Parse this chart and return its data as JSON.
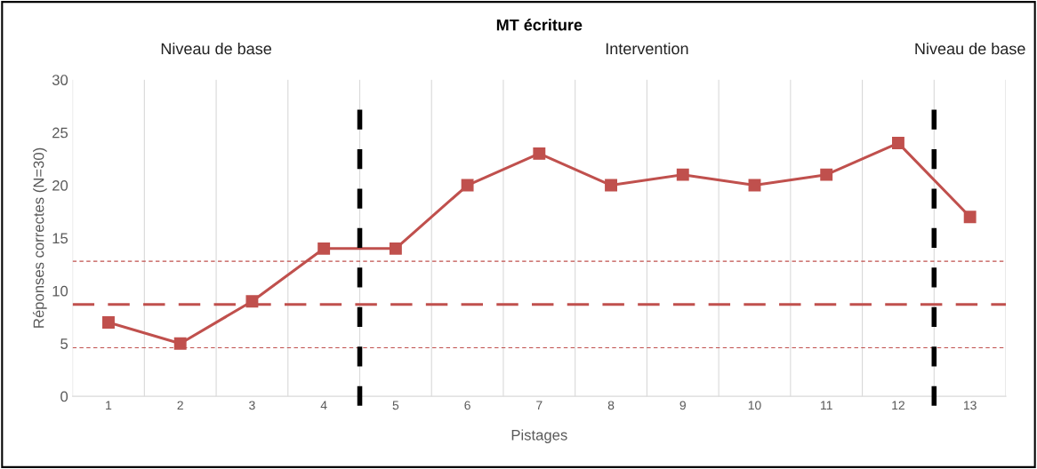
{
  "chart_data": {
    "type": "line",
    "title": "MT écriture",
    "xlabel": "Pistages",
    "ylabel": "Réponses correctes (N=30)",
    "x": [
      1,
      2,
      3,
      4,
      5,
      6,
      7,
      8,
      9,
      10,
      11,
      12,
      13
    ],
    "series": [
      {
        "color": "#c0504d",
        "values": [
          7,
          5,
          9,
          14,
          14,
          20,
          23,
          20,
          21,
          20,
          21,
          24,
          17
        ]
      }
    ],
    "xlim": [
      0.5,
      13.5
    ],
    "xticks": [
      1,
      2,
      3,
      4,
      5,
      6,
      7,
      8,
      9,
      10,
      11,
      12,
      13
    ],
    "ylim": [
      0,
      30
    ],
    "yticks": [
      0,
      5,
      10,
      15,
      20,
      25,
      30
    ],
    "marker": "square",
    "line_style": "solid",
    "grid": "x",
    "legend": false,
    "ref_lines": [
      {
        "axis": "y",
        "value": 8.7,
        "color": "#c0504d",
        "line_style": "dashed"
      },
      {
        "axis": "y",
        "value": 12.8,
        "color": "#c0504d",
        "line_style": "dotted"
      },
      {
        "axis": "y",
        "value": 4.6,
        "color": "#c0504d",
        "line_style": "dotted"
      },
      {
        "axis": "x",
        "value": 4.5,
        "color": "#000000",
        "line_style": "dashed"
      },
      {
        "axis": "x",
        "value": 12.5,
        "color": "#000000",
        "line_style": "dashed"
      }
    ],
    "annotations": [
      "Niveau de base",
      "Intervention",
      "Niveau de base"
    ]
  }
}
